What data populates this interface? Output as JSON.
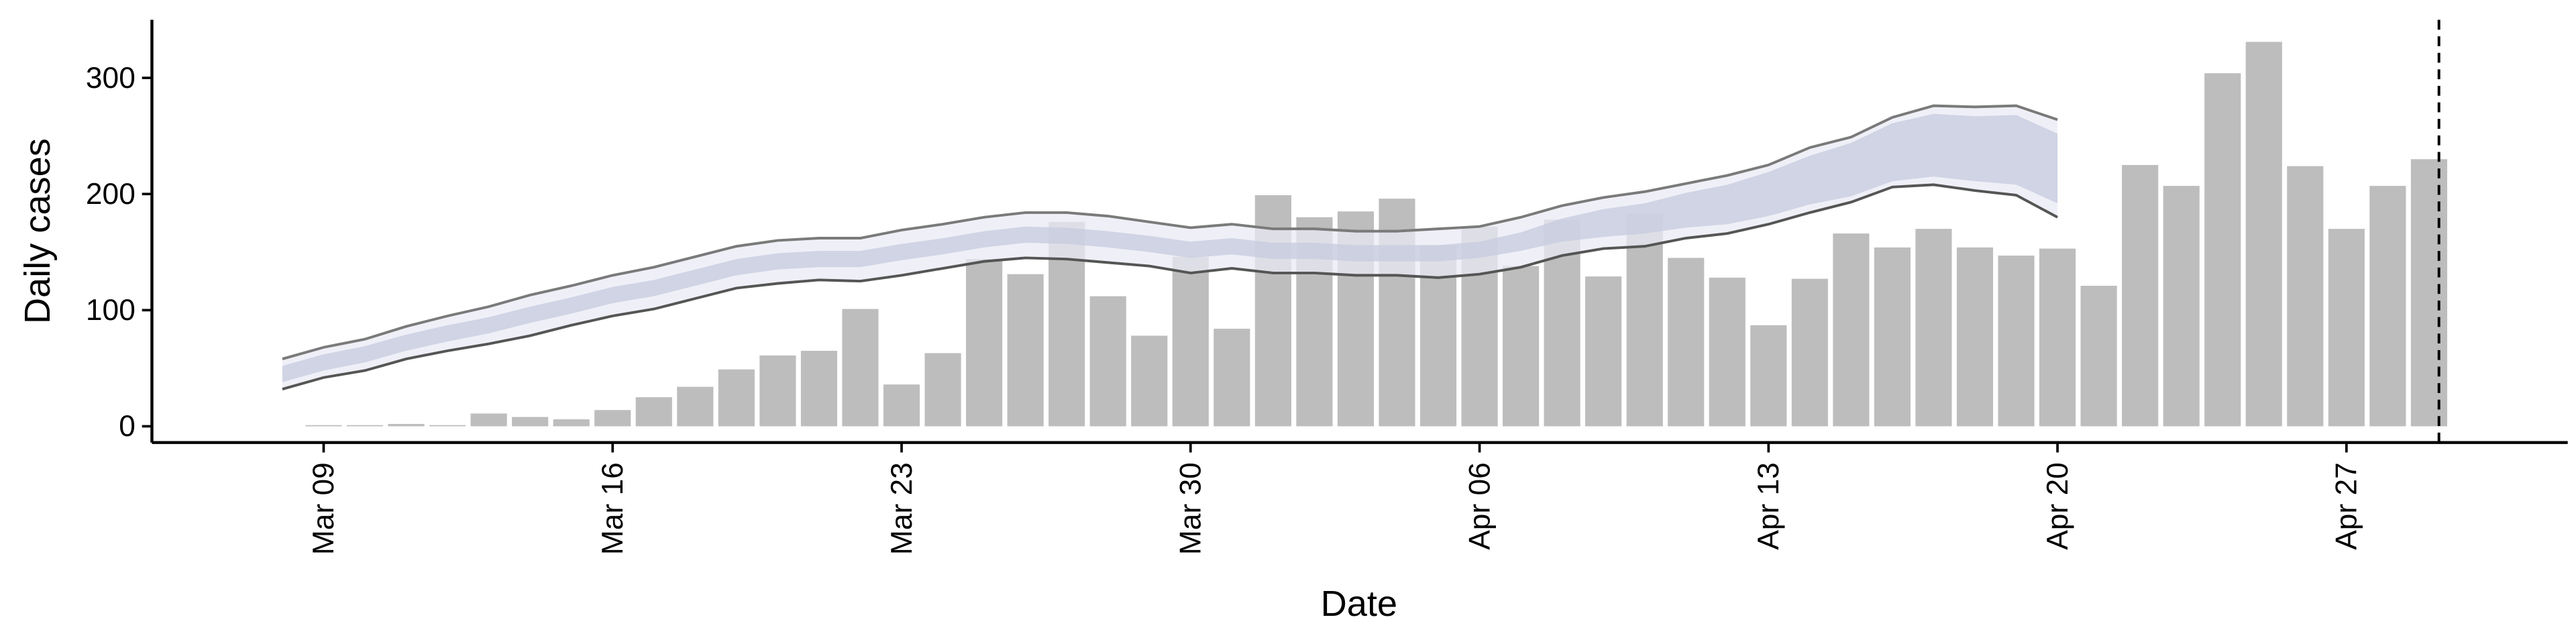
{
  "chart_data": {
    "type": "bar",
    "x_label": "Date",
    "y_label": "Daily cases",
    "categories": [
      null,
      "Mar 09",
      null,
      null,
      null,
      null,
      null,
      null,
      "Mar 16",
      null,
      null,
      null,
      null,
      null,
      null,
      "Mar 23",
      null,
      null,
      null,
      null,
      null,
      null,
      "Mar 30",
      null,
      null,
      null,
      null,
      null,
      null,
      "Apr 06",
      null,
      null,
      null,
      null,
      null,
      null,
      "Apr 13",
      null,
      null,
      null,
      null,
      null,
      null,
      "Apr 20",
      null,
      null,
      null,
      null,
      null,
      null,
      "Apr 27",
      null,
      null
    ],
    "values": [
      null,
      1,
      1,
      2,
      1,
      11,
      8,
      6,
      14,
      25,
      34,
      49,
      61,
      65,
      101,
      36,
      63,
      144,
      131,
      176,
      112,
      78,
      146,
      84,
      199,
      180,
      185,
      196,
      156,
      172,
      138,
      178,
      129,
      183,
      145,
      128,
      87,
      127,
      166,
      154,
      170,
      154,
      147,
      153,
      121,
      225,
      207,
      304,
      331,
      224,
      170,
      207,
      230
    ],
    "color": "#bdbdbd",
    "bands": [
      {
        "color": "#e9ebf4",
        "upper": [
          58,
          68,
          75,
          86,
          95,
          103,
          113,
          121,
          130,
          137,
          146,
          155,
          160,
          162,
          162,
          169,
          174,
          180,
          184,
          184,
          181,
          176,
          171,
          174,
          170,
          170,
          168,
          168,
          170,
          172,
          180,
          190,
          197,
          202,
          209,
          216,
          225,
          240,
          249,
          266,
          276,
          275,
          276,
          264,
          null,
          null,
          null,
          null,
          null,
          null,
          null,
          null,
          null
        ],
        "lower": [
          32,
          42,
          48,
          58,
          65,
          71,
          78,
          87,
          95,
          101,
          110,
          119,
          123,
          126,
          125,
          130,
          136,
          142,
          145,
          144,
          141,
          138,
          132,
          136,
          132,
          132,
          130,
          130,
          128,
          131,
          137,
          147,
          153,
          155,
          162,
          166,
          174,
          184,
          193,
          206,
          208,
          203,
          199,
          180,
          null,
          null,
          null,
          null,
          null,
          null,
          null,
          null,
          null
        ]
      },
      {
        "color": "#c5cbdf",
        "upper": [
          52,
          62,
          69,
          79,
          87,
          94,
          103,
          111,
          120,
          126,
          135,
          144,
          149,
          151,
          151,
          157,
          162,
          168,
          172,
          171,
          168,
          164,
          159,
          162,
          158,
          158,
          156,
          156,
          156,
          159,
          167,
          179,
          187,
          192,
          201,
          208,
          219,
          233,
          244,
          261,
          269,
          267,
          268,
          252,
          null,
          null,
          null,
          null,
          null,
          null,
          null,
          null,
          null
        ],
        "lower": [
          38,
          48,
          55,
          65,
          73,
          80,
          89,
          97,
          106,
          112,
          121,
          130,
          135,
          137,
          137,
          143,
          148,
          154,
          158,
          157,
          154,
          150,
          145,
          148,
          144,
          144,
          142,
          142,
          142,
          145,
          151,
          159,
          163,
          166,
          171,
          174,
          181,
          191,
          198,
          211,
          215,
          211,
          208,
          192,
          null,
          null,
          null,
          null,
          null,
          null,
          null,
          null,
          null
        ]
      }
    ],
    "ylim": [
      -14,
      350
    ],
    "yticks": [
      0,
      100,
      200,
      300
    ]
  }
}
